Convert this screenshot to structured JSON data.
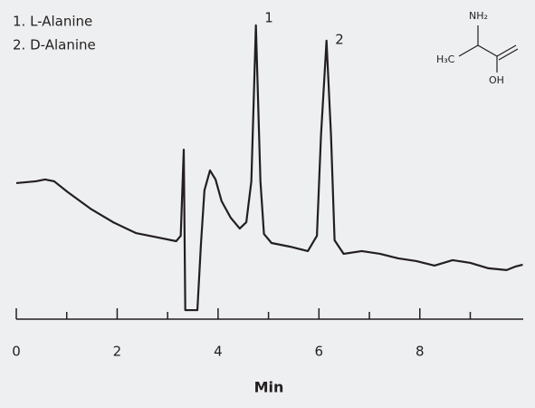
{
  "chart_data": {
    "type": "line",
    "legend_entries": [
      "1. L-Alanine",
      "2. D-Alanine"
    ],
    "peak_labels": [
      "1",
      "2"
    ],
    "structure_labels": [
      "NH₂",
      "H₃C",
      "OH"
    ],
    "xlabel": "Min",
    "color": "#231f20",
    "x": [
      0.0,
      0.39,
      0.57,
      0.75,
      1.02,
      1.47,
      1.92,
      2.37,
      2.82,
      3.17,
      3.26,
      3.32,
      3.35,
      3.59,
      3.66,
      3.73,
      3.84,
      3.95,
      4.07,
      4.25,
      4.43,
      4.56,
      4.66,
      4.75,
      4.84,
      4.91,
      5.06,
      5.42,
      5.78,
      5.96,
      6.04,
      6.15,
      6.24,
      6.31,
      6.49,
      6.85,
      7.21,
      7.57,
      7.93,
      8.29,
      8.65,
      9.0,
      9.36,
      9.72,
      9.9,
      10.04
    ],
    "values": [
      45.2,
      45.8,
      46.4,
      45.8,
      42.2,
      36.7,
      32.2,
      28.6,
      27.1,
      25.9,
      27.7,
      56.3,
      3.0,
      3.0,
      24.7,
      42.8,
      49.4,
      46.4,
      39.2,
      33.7,
      30.1,
      32.2,
      45.8,
      97.6,
      45.8,
      28.3,
      25.3,
      24.1,
      22.6,
      27.7,
      60.8,
      92.5,
      60.8,
      26.2,
      21.7,
      22.6,
      21.7,
      20.2,
      19.3,
      17.8,
      19.6,
      18.7,
      16.9,
      16.3,
      17.5,
      18.1
    ],
    "xlim": [
      0,
      10.05
    ],
    "ylim": [
      0,
      100
    ],
    "xticks": [
      0,
      2,
      4,
      6,
      8
    ],
    "xminorticks": [
      1,
      3,
      5,
      7,
      9
    ]
  }
}
